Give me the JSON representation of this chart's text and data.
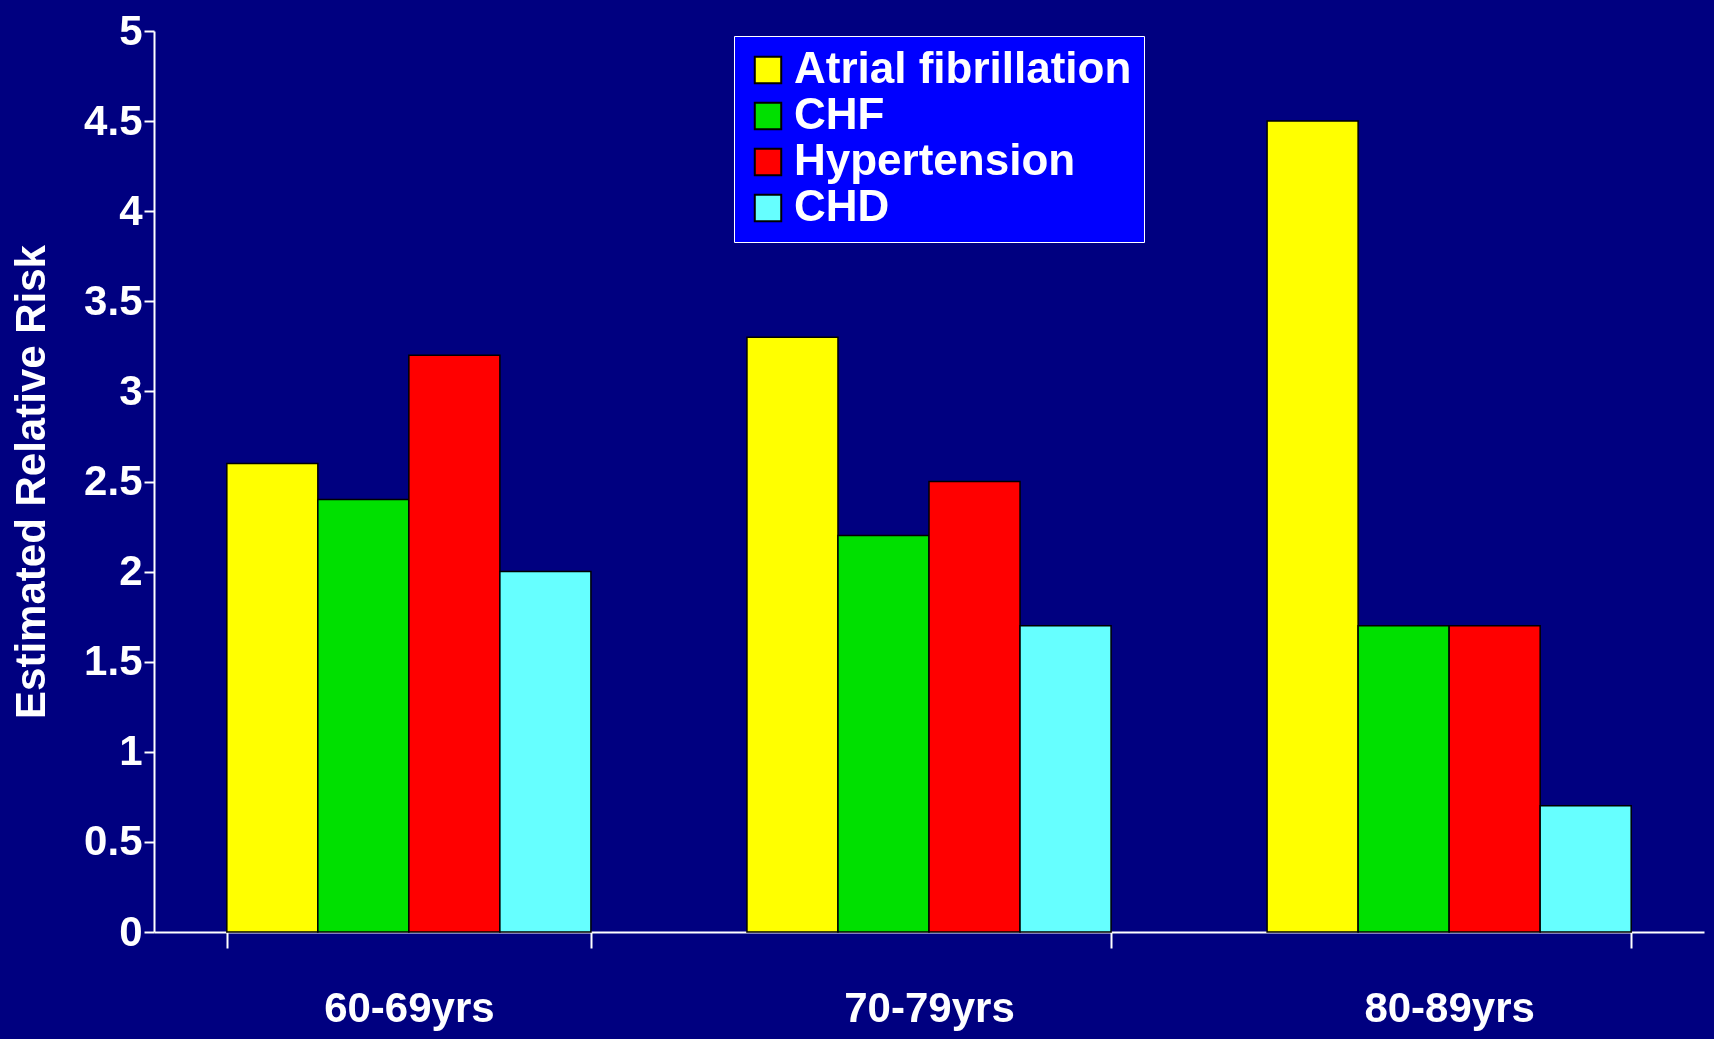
{
  "chart_data": {
    "type": "bar",
    "ylabel": "Estimated Relative Risk",
    "categories": [
      "60-69yrs",
      "70-79yrs",
      "80-89yrs"
    ],
    "series": [
      {
        "name": "Atrial fibrillation",
        "color": "#ffff00",
        "values": [
          2.6,
          3.3,
          4.5
        ]
      },
      {
        "name": "CHF",
        "color": "#00e000",
        "values": [
          2.4,
          2.2,
          1.7
        ]
      },
      {
        "name": "Hypertension",
        "color": "#ff0000",
        "values": [
          3.2,
          2.5,
          1.7
        ]
      },
      {
        "name": "CHD",
        "color": "#66ffff",
        "values": [
          2.0,
          1.7,
          0.7
        ]
      }
    ],
    "ylim": [
      0,
      5
    ],
    "yticks": [
      0,
      0.5,
      1,
      1.5,
      2,
      2.5,
      3,
      3.5,
      4,
      4.5,
      5
    ],
    "grid": false,
    "legend": "top"
  }
}
